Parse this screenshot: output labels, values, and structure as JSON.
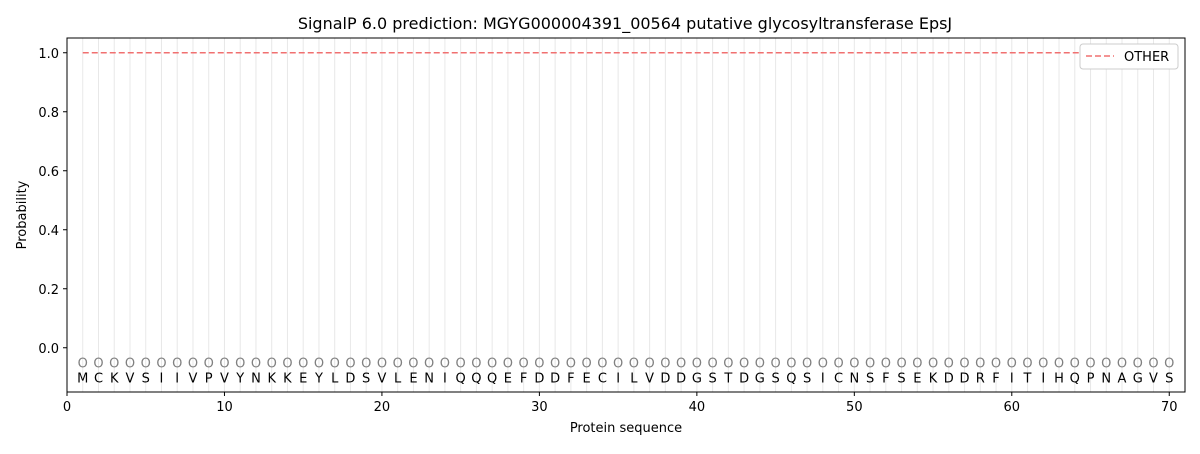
{
  "chart_data": {
    "type": "line",
    "title": "SignalP 6.0 prediction: MGYG000004391_00564 putative glycosyltransferase EpsJ",
    "xlabel": "Protein sequence",
    "ylabel": "Probability",
    "xlim": [
      0,
      71
    ],
    "ylim": [
      -0.15,
      1.05
    ],
    "xticks": [
      0,
      10,
      20,
      30,
      40,
      50,
      60,
      70
    ],
    "yticks": [
      "0.0",
      "0.2",
      "0.4",
      "0.6",
      "0.8",
      "1.0"
    ],
    "grid": "vertical lines at each residue",
    "legend_position": "top-right",
    "sequence": [
      "M",
      "C",
      "K",
      "V",
      "S",
      "I",
      "I",
      "V",
      "P",
      "V",
      "Y",
      "N",
      "K",
      "K",
      "E",
      "Y",
      "L",
      "D",
      "S",
      "V",
      "L",
      "E",
      "N",
      "I",
      "Q",
      "Q",
      "Q",
      "E",
      "F",
      "D",
      "D",
      "F",
      "E",
      "C",
      "I",
      "L",
      "V",
      "D",
      "D",
      "G",
      "S",
      "T",
      "D",
      "G",
      "S",
      "Q",
      "S",
      "I",
      "C",
      "N",
      "S",
      "F",
      "S",
      "E",
      "K",
      "D",
      "D",
      "R",
      "F",
      "I",
      "T",
      "I",
      "H",
      "Q",
      "P",
      "N",
      "A",
      "G",
      "V",
      "S"
    ],
    "predicted_labels": "OOOOOOOOOOOOOOOOOOOOOOOOOOOOOOOOOOOOOOOOOOOOOOOOOOOOOOOOOOOOOOOOOOOOOO",
    "series": [
      {
        "name": "OTHER",
        "color": "#f07070",
        "style": "dashed",
        "x_start": 1,
        "x_end": 70,
        "value": 1.0
      }
    ]
  }
}
